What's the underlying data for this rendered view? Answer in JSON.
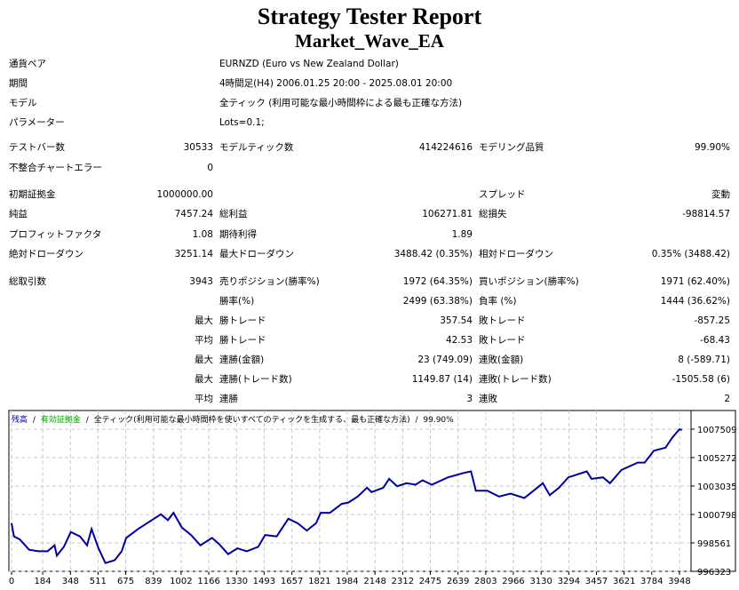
{
  "header": {
    "title": "Strategy Tester Report",
    "subtitle": "Market_Wave_EA"
  },
  "rows": [
    [
      "通貨ペア",
      "",
      "EURNZD (Euro vs New Zealand Dollar)",
      "",
      "",
      ""
    ],
    [
      "期間",
      "",
      "4時間足(H4) 2006.01.25 20:00 - 2025.08.01 20:00",
      "",
      "",
      ""
    ],
    [
      "モデル",
      "",
      "全ティック (利用可能な最小時間枠による最も正確な方法)",
      "",
      "",
      ""
    ],
    [
      "パラメーター",
      "",
      "Lots=0.1;",
      "",
      "",
      ""
    ],
    [
      "テストバー数",
      "30533",
      "モデルティック数",
      "414224616",
      "モデリング品質",
      "99.90%"
    ],
    [
      "不整合チャートエラー",
      "0",
      "",
      "",
      "",
      ""
    ],
    [
      "初期証拠金",
      "1000000.00",
      "",
      "",
      "スプレッド",
      "変動"
    ],
    [
      "純益",
      "7457.24",
      "総利益",
      "106271.81",
      "総損失",
      "-98814.57"
    ],
    [
      "プロフィットファクタ",
      "1.08",
      "期待利得",
      "1.89",
      "",
      ""
    ],
    [
      "絶対ドローダウン",
      "3251.14",
      "最大ドローダウン",
      "3488.42 (0.35%)",
      "相対ドローダウン",
      "0.35% (3488.42)"
    ],
    [
      "総取引数",
      "3943",
      "売りポジション(勝率%)",
      "1972 (64.35%)",
      "買いポジション(勝率%)",
      "1971 (62.40%)"
    ],
    [
      "",
      "",
      "勝率(%)",
      "2499 (63.38%)",
      "負率 (%)",
      "1444 (36.62%)"
    ],
    [
      "",
      "最大",
      "勝トレード",
      "357.54",
      "敗トレード",
      "-857.25"
    ],
    [
      "",
      "平均",
      "勝トレード",
      "42.53",
      "敗トレード",
      "-68.43"
    ],
    [
      "",
      "最大",
      "連勝(金額)",
      "23 (749.09)",
      "連敗(金額)",
      "8 (-589.71)"
    ],
    [
      "",
      "最大",
      "連勝(トレード数)",
      "1149.87 (14)",
      "連敗(トレード数)",
      "-1505.58 (6)"
    ],
    [
      "",
      "平均",
      "連勝",
      "3",
      "連敗",
      "2"
    ]
  ],
  "chart_data": {
    "type": "line",
    "legend": {
      "balance": "残高",
      "equity": "有効証拠金",
      "model": "全ティック(利用可能な最小時間枠を使いすべてのティックを生成する、最も正確な方法)",
      "quality": "99.90%",
      "sep": "/"
    },
    "colors": {
      "balance": "#0000a0",
      "equity": "#00a000",
      "grid": "#c8c8c8"
    },
    "x_ticks": [
      0,
      184,
      348,
      511,
      675,
      839,
      1002,
      1166,
      1330,
      1493,
      1657,
      1821,
      1984,
      2148,
      2312,
      2475,
      2639,
      2803,
      2966,
      3130,
      3294,
      3457,
      3621,
      3784,
      3948
    ],
    "y_ticks": [
      1007509,
      1005272,
      1003035,
      1000798,
      998561,
      996323
    ],
    "xlim": [
      0,
      4016
    ],
    "ylim": [
      996323,
      1007509
    ],
    "series": [
      {
        "name": "残高",
        "x": [
          0,
          14,
          49,
          104,
          159,
          213,
          254,
          268,
          309,
          350,
          405,
          446,
          473,
          514,
          555,
          610,
          651,
          678,
          747,
          801,
          883,
          924,
          957,
          1007,
          1061,
          1116,
          1185,
          1226,
          1280,
          1335,
          1390,
          1458,
          1499,
          1567,
          1636,
          1691,
          1745,
          1800,
          1827,
          1882,
          1951,
          1992,
          2046,
          2101,
          2128,
          2197,
          2232,
          2279,
          2334,
          2388,
          2429,
          2484,
          2580,
          2675,
          2716,
          2744,
          2812,
          2881,
          2949,
          3031,
          3086,
          3140,
          3181,
          3236,
          3291,
          3400,
          3428,
          3496,
          3537,
          3605,
          3701,
          3742,
          3797,
          3865,
          3906,
          3948,
          3962
        ],
        "y": [
          1000114,
          999068,
          998835,
          998021,
          997905,
          997905,
          998370,
          997556,
          998254,
          999417,
          999068,
          998370,
          999649,
          998137,
          996974,
          997207,
          997905,
          998951,
          999649,
          1000114,
          1000812,
          1000347,
          1000928,
          999765,
          999184,
          998370,
          998951,
          998486,
          997672,
          998137,
          997905,
          998254,
          999184,
          999068,
          1000463,
          1000114,
          999533,
          1000114,
          1000928,
          1000928,
          1001626,
          1001742,
          1002208,
          1002905,
          1002556,
          1002905,
          1003603,
          1003022,
          1003255,
          1003138,
          1003487,
          1003138,
          1003720,
          1004069,
          1004185,
          1002673,
          1002673,
          1002208,
          1002440,
          1002091,
          1002673,
          1003255,
          1002324,
          1002905,
          1003720,
          1004185,
          1003603,
          1003720,
          1003255,
          1004302,
          1004883,
          1004883,
          1005814,
          1006046,
          1006860,
          1007509,
          1007440
        ]
      }
    ]
  }
}
